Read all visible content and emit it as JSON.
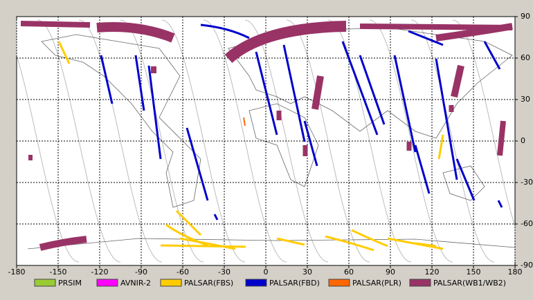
{
  "chart_data": {
    "type": "map",
    "xlim": [
      -180,
      180
    ],
    "ylim": [
      -90,
      90
    ],
    "xticks": [
      -180,
      -150,
      -120,
      -90,
      -60,
      -30,
      0,
      30,
      60,
      90,
      120,
      150,
      180
    ],
    "yticks": [
      -90,
      -60,
      -30,
      0,
      30,
      60,
      90
    ],
    "grid": true,
    "legend": [
      {
        "name": "PRSIM",
        "color": "#99cc33"
      },
      {
        "name": "AVNIR-2",
        "color": "#ff00ff"
      },
      {
        "name": "PALSAR(FBS)",
        "color": "#ffcc00"
      },
      {
        "name": "PALSAR(FBD)",
        "color": "#0000cc"
      },
      {
        "name": "PALSAR(PLR)",
        "color": "#ff6600"
      },
      {
        "name": "PALSAR(WB1/WB2)",
        "color": "#993366"
      }
    ]
  }
}
